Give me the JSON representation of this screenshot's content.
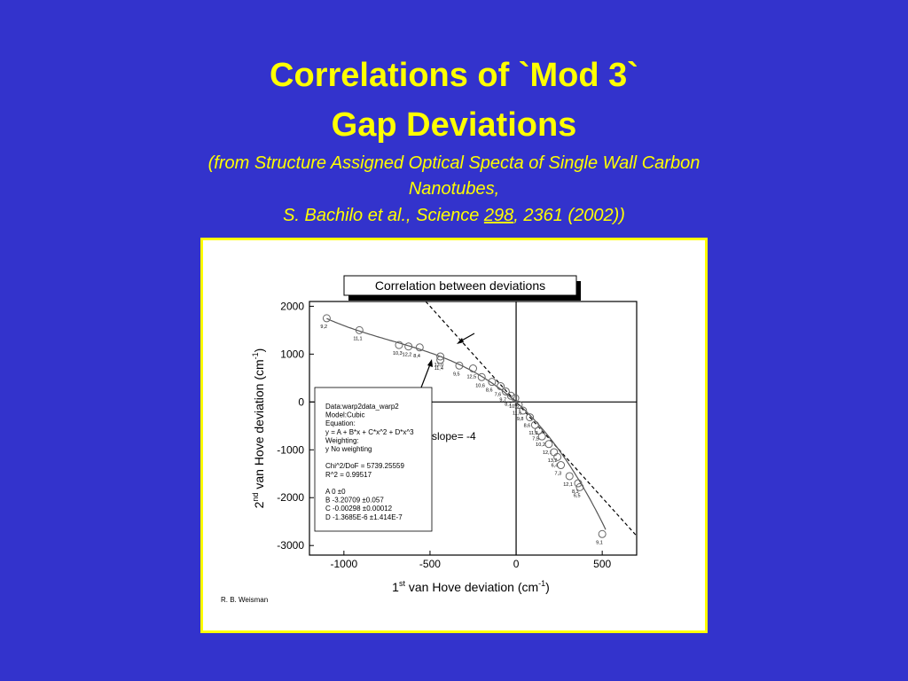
{
  "slide": {
    "title_line1": "Correlations of `Mod 3`",
    "title_line2": "Gap Deviations",
    "subtitle_line1": "(from Structure Assigned Optical Specta of Single Wall Carbon",
    "subtitle_line2": "Nanotubes,",
    "subtitle_line3_a": "S. Bachilo et al., Science ",
    "subtitle_line3_vol": "298",
    "subtitle_line3_b": ", 2361 (2002))"
  },
  "chart_data": {
    "type": "scatter",
    "title": "Correlation between deviations",
    "xlabel": {
      "pre": "1",
      "sup": "st",
      "post": " van Hove deviation (cm",
      "unit_sup": "-1",
      "close": ")"
    },
    "ylabel": {
      "pre": "2",
      "sup": "nd",
      "post": " van Hove deviation (cm",
      "unit_sup": "-1",
      "close": ")"
    },
    "xlim": [
      -1200,
      700
    ],
    "ylim": [
      -3200,
      2100
    ],
    "xticks": [
      -1000,
      -500,
      0,
      500
    ],
    "yticks": [
      2000,
      1000,
      0,
      -1000,
      -2000,
      -3000
    ],
    "xtick_labels": [
      "-1000",
      "-500",
      "0",
      "500"
    ],
    "ytick_labels": [
      "2000",
      "1000",
      "0",
      "-1000",
      "-2000",
      "-3000"
    ],
    "points": [
      {
        "x": -1100,
        "y": 1750,
        "label": "9,2"
      },
      {
        "x": -910,
        "y": 1500,
        "label": "11,1"
      },
      {
        "x": -680,
        "y": 1190,
        "label": "10,3"
      },
      {
        "x": -625,
        "y": 1160,
        "label": "12,2"
      },
      {
        "x": -560,
        "y": 1140,
        "label": "8,4"
      },
      {
        "x": -440,
        "y": 950,
        "label": "13,0"
      },
      {
        "x": -440,
        "y": 880,
        "label": "11,4"
      },
      {
        "x": -330,
        "y": 760,
        "label": "9,5"
      },
      {
        "x": -250,
        "y": 700,
        "label": "12,5"
      },
      {
        "x": -200,
        "y": 520,
        "label": "10,6"
      },
      {
        "x": -140,
        "y": 420,
        "label": "8,6"
      },
      {
        "x": -90,
        "y": 330,
        "label": "7,6"
      },
      {
        "x": -60,
        "y": 220,
        "label": "9,7"
      },
      {
        "x": -30,
        "y": 130,
        "label": "8,7"
      },
      {
        "x": -5,
        "y": 80,
        "label": "10,5"
      },
      {
        "x": 15,
        "y": -60,
        "label": "11,6"
      },
      {
        "x": 40,
        "y": -180,
        "label": "9,8"
      },
      {
        "x": 80,
        "y": -320,
        "label": "8,6"
      },
      {
        "x": 110,
        "y": -480,
        "label": "11,3"
      },
      {
        "x": 130,
        "y": -600,
        "label": "7,5"
      },
      {
        "x": 150,
        "y": -720,
        "label": "10,2"
      },
      {
        "x": 190,
        "y": -880,
        "label": "12,1"
      },
      {
        "x": 220,
        "y": -1050,
        "label": "13,2"
      },
      {
        "x": 240,
        "y": -1150,
        "label": "6,4"
      },
      {
        "x": 260,
        "y": -1320,
        "label": "7,3"
      },
      {
        "x": 310,
        "y": -1550,
        "label": "12,1"
      },
      {
        "x": 360,
        "y": -1700,
        "label": "8,3"
      },
      {
        "x": 370,
        "y": -1780,
        "label": "6,5"
      },
      {
        "x": 500,
        "y": -2760,
        "label": "9,1"
      }
    ],
    "fit": {
      "A": 0,
      "B": -3.20709,
      "C": -0.00298,
      "D": -1.3685e-06
    },
    "slope_line": {
      "slope": -4,
      "label": "slope= -4"
    },
    "info_box": [
      "Data:warp2data_warp2",
      "Model:Cubic",
      "Equation:",
      "y = A + B*x + C*x^2 + D*x^3",
      "Weighting:",
      "y          No weighting",
      "",
      "Chi^2/DoF       = 5739.25559",
      "R^2      = 0.99517",
      "",
      "A         0              ±0",
      "B         -3.20709     ±0.057",
      "C         -0.00298     ±0.00012",
      "D         -1.3685E-6   ±1.414E-7"
    ],
    "credit": "R. B. Weisman",
    "grid": false,
    "legend": "none"
  }
}
